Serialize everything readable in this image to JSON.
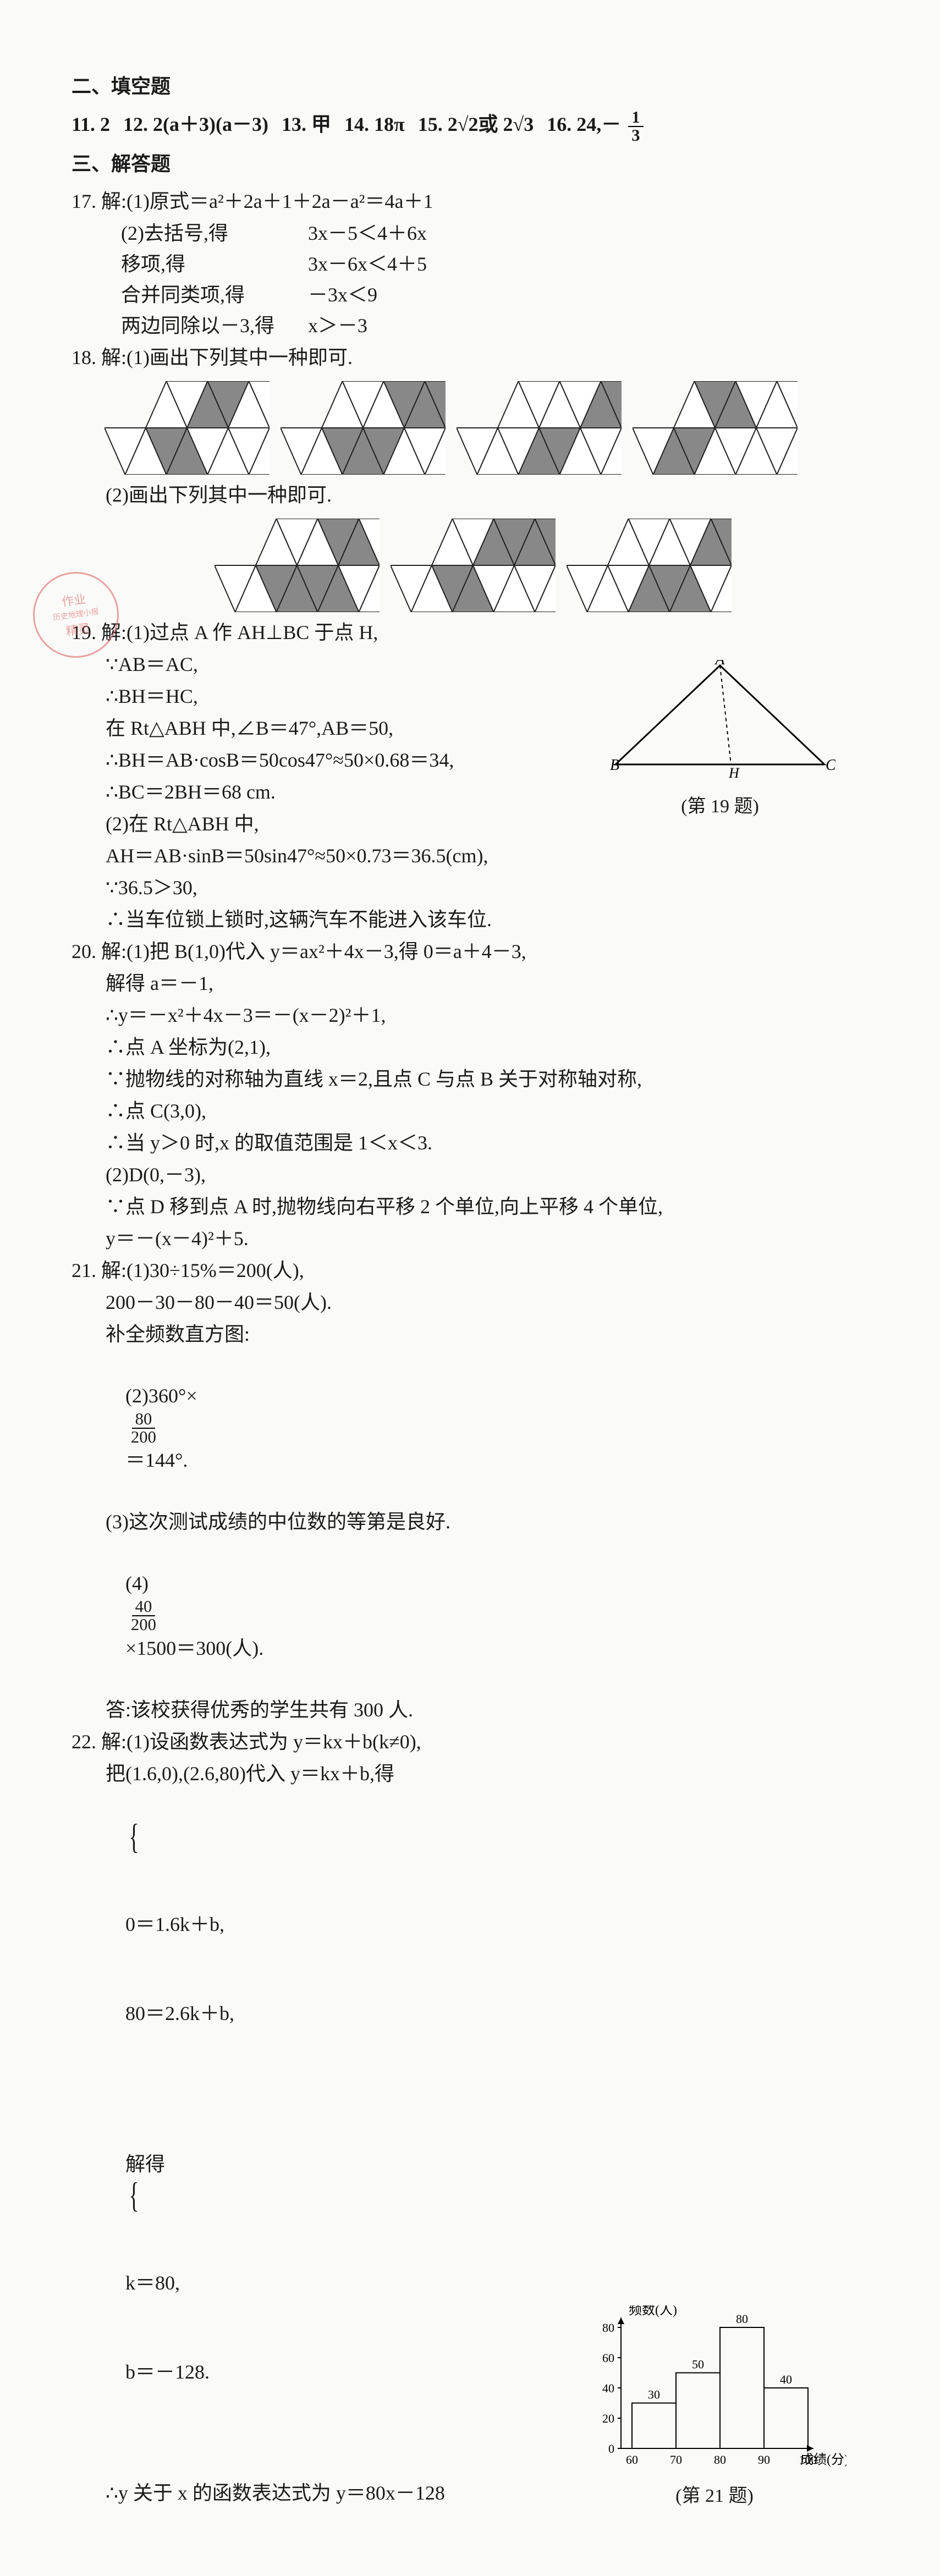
{
  "sections": {
    "fill_title": "二、填空题",
    "solve_title": "三、解答题"
  },
  "fill": {
    "a11": "11. 2",
    "a12": "12. 2(a＋3)(a－3)",
    "a13": "13. 甲",
    "a14": "14. 18π",
    "a15": "15. 2√2或 2√3",
    "a16_pre": "16. 24,－",
    "a16_num": "1",
    "a16_den": "3"
  },
  "q17": {
    "head": "17. 解:(1)原式＝a²＋2a＋1＋2a－a²＝4a＋1",
    "r1a": "(2)去括号,得",
    "r1b": "3x－5＜4＋6x",
    "r2a": "移项,得",
    "r2b": "3x－6x＜4＋5",
    "r3a": "合并同类项,得",
    "r3b": "－3x＜9",
    "r4a": "两边同除以－3,得",
    "r4b": "x＞－3"
  },
  "q18": {
    "head": "18. 解:(1)画出下列其中一种即可.",
    "head2": "(2)画出下列其中一种即可."
  },
  "q19": {
    "l1": "19. 解:(1)过点 A 作 AH⊥BC 于点 H,",
    "l2": "∵AB＝AC,",
    "l3": "∴BH＝HC,",
    "l4": "在 Rt△ABH 中,∠B＝47°,AB＝50,",
    "l5": "∴BH＝AB·cosB＝50cos47°≈50×0.68＝34,",
    "l6": "∴BC＝2BH＝68 cm.",
    "l7": "(2)在 Rt△ABH 中,",
    "l8": "AH＝AB·sinB＝50sin47°≈50×0.73＝36.5(cm),",
    "l9": "∵36.5＞30,",
    "l10": "∴当车位锁上锁时,这辆汽车不能进入该车位.",
    "cap": "(第 19 题)",
    "labels": {
      "A": "A",
      "B": "B",
      "C": "C",
      "H": "H"
    }
  },
  "q20": {
    "l1": "20. 解:(1)把 B(1,0)代入 y＝ax²＋4x－3,得 0＝a＋4－3,",
    "l2": "解得 a＝－1,",
    "l3": "∴y＝－x²＋4x－3＝－(x－2)²＋1,",
    "l4": "∴点 A 坐标为(2,1),",
    "l5": "∵抛物线的对称轴为直线 x＝2,且点 C 与点 B 关于对称轴对称,",
    "l6": "∴点 C(3,0),",
    "l7": "∴当 y＞0 时,x 的取值范围是 1＜x＜3.",
    "l8": "(2)D(0,－3),",
    "l9": "∵点 D 移到点 A 时,抛物线向右平移 2 个单位,向上平移 4 个单位,",
    "l10": "y＝－(x－4)²＋5."
  },
  "q21": {
    "l1": "21. 解:(1)30÷15%＝200(人),",
    "l2": "200－30－80－40＝50(人).",
    "l3": "补全频数直方图:",
    "l4_pre": "(2)360°×",
    "l4_num": "80",
    "l4_den": "200",
    "l4_post": "＝144°.",
    "l5": "(3)这次测试成绩的中位数的等第是良好.",
    "l6_pre": "(4)",
    "l6_num": "40",
    "l6_den": "200",
    "l6_post": "×1500＝300(人).",
    "l7": "答:该校获得优秀的学生共有 300 人.",
    "cap": "(第 21 题)",
    "axisY": "频数(人)",
    "axisX": "成绩(分)",
    "xticks": [
      "60",
      "70",
      "80",
      "90",
      "100"
    ],
    "yticks": [
      "0",
      "20",
      "40",
      "60",
      "80"
    ],
    "bars": [
      {
        "label": "30",
        "h": 30
      },
      {
        "label": "50",
        "h": 50
      },
      {
        "label": "80",
        "h": 80
      },
      {
        "label": "40",
        "h": 40
      }
    ]
  },
  "q22": {
    "l1": "22. 解:(1)设函数表达式为 y＝kx＋b(k≠0),",
    "l2": "把(1.6,0),(2.6,80)代入 y＝kx＋b,得",
    "sys1": "0＝1.6k＋b,",
    "sys2": "80＝2.6k＋b,",
    "sol_pre": "解得",
    "sol1": "k＝80,",
    "sol2": "b＝－128.",
    "l6": "∴y 关于 x 的函数表达式为 y＝80x－128"
  },
  "stamp": {
    "t1": "作业",
    "t2": "历史地理小报",
    "t3": "精灵"
  },
  "colors": {
    "page_bg": "#fafaf8",
    "text": "#1a1a1a",
    "tri_fill": "#888888",
    "tri_stroke": "#222222",
    "stamp": "#d85b5b"
  }
}
